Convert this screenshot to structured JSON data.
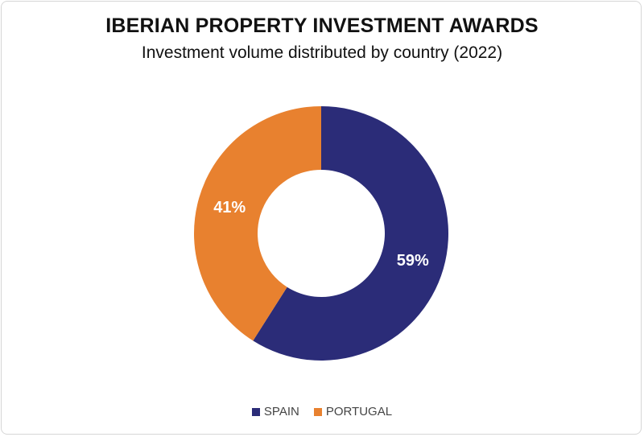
{
  "chart_data": {
    "type": "pie",
    "donut": true,
    "title": "IBERIAN PROPERTY INVESTMENT AWARDS",
    "subtitle": "Investment volume distributed by country (2022)",
    "categories": [
      "SPAIN",
      "PORTUGAL"
    ],
    "values": [
      59,
      41
    ],
    "labels": [
      "59%",
      "41%"
    ],
    "colors": [
      "#2b2c78",
      "#e8812f"
    ],
    "legend_position": "bottom"
  }
}
